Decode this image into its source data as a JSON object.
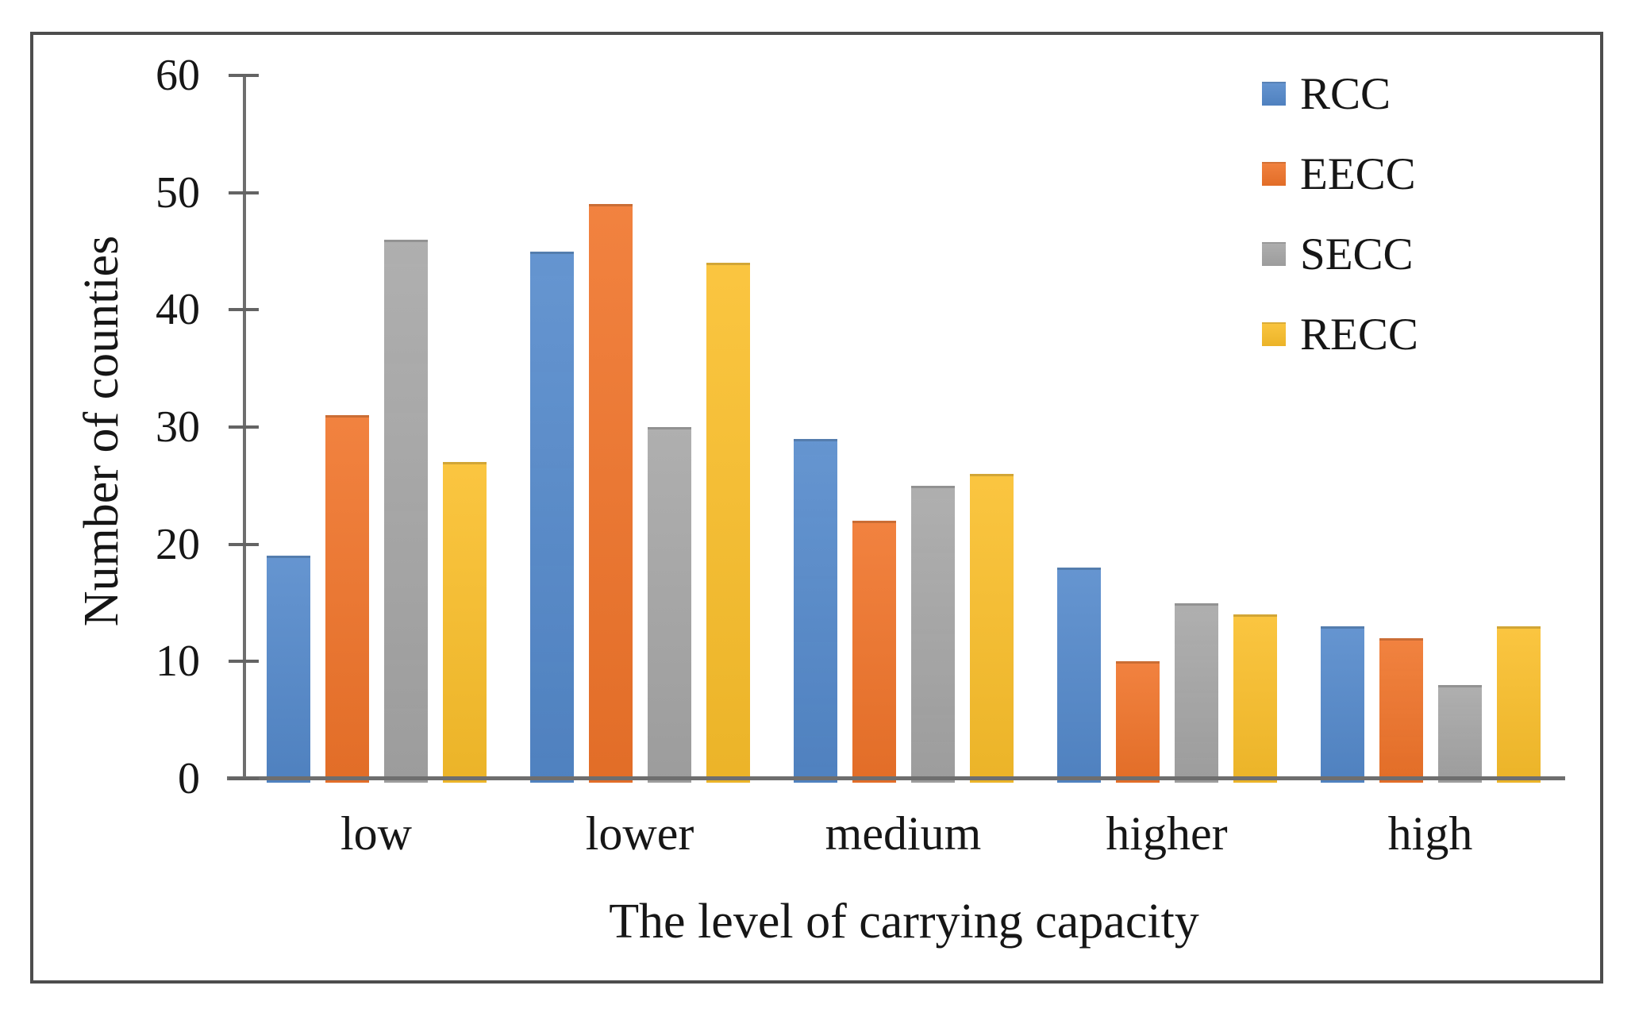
{
  "figure": {
    "background": "#ffffff",
    "border_color": "#4d4d4d",
    "axis_color": "#6e6e6e",
    "text_color": "#161616"
  },
  "chart_data": {
    "type": "bar",
    "title": "",
    "xlabel": "The level of carrying capacity",
    "ylabel": "Number of counties",
    "categories": [
      "low",
      "lower",
      "medium",
      "higher",
      "high"
    ],
    "series": [
      {
        "name": "RCC",
        "color": "#5489CB",
        "values": [
          19,
          45,
          29,
          18,
          13
        ]
      },
      {
        "name": "EECC",
        "color": "#F0742A",
        "values": [
          31,
          49,
          22,
          10,
          12
        ]
      },
      {
        "name": "SECC",
        "color": "#A6A6A6",
        "values": [
          46,
          30,
          25,
          15,
          8
        ]
      },
      {
        "name": "RECC",
        "color": "#FABF2B",
        "values": [
          27,
          44,
          26,
          14,
          13
        ]
      }
    ],
    "ylim": [
      0,
      60
    ],
    "ytick_step": 10,
    "yticks": [
      "0",
      "10",
      "20",
      "30",
      "40",
      "50",
      "60"
    ],
    "grid": false,
    "legend_position": "top-right"
  }
}
